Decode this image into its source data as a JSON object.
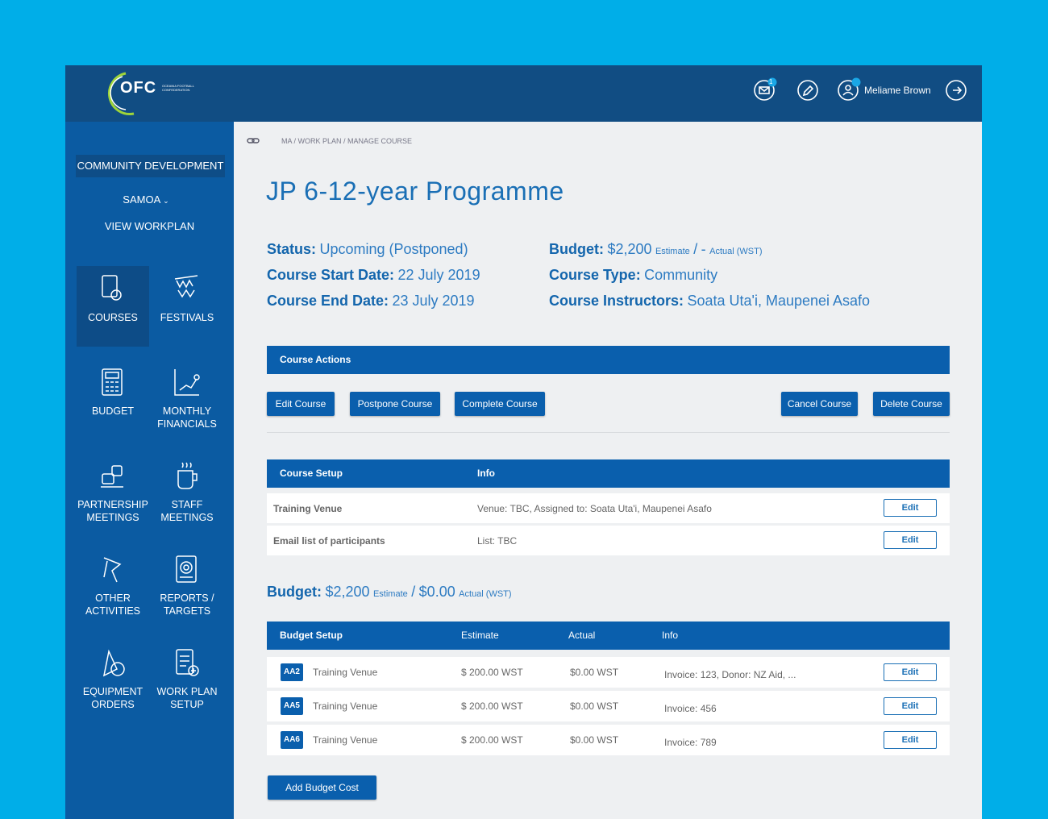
{
  "header": {
    "logo": "OFC",
    "logo_subtitle": "OCEANIA FOOTBALL CONFEDERATION",
    "notification_count": "1",
    "user_name": "Meliame Brown"
  },
  "sidebar": {
    "program": "COMMUNITY DEVELOPMENT",
    "country": "SAMOA",
    "view_workplan": "VIEW WORKPLAN",
    "menu": [
      {
        "lines": [
          "COURSES"
        ],
        "active": true
      },
      {
        "lines": [
          "FESTIVALS"
        ],
        "active": false
      },
      {
        "lines": [
          "BUDGET"
        ],
        "active": false
      },
      {
        "lines": [
          "MONTHLY",
          "FINANCIALS"
        ],
        "active": false
      },
      {
        "lines": [
          "PARTNERSHIP",
          "MEETINGS"
        ],
        "active": false
      },
      {
        "lines": [
          "STAFF",
          "MEETINGS"
        ],
        "active": false
      },
      {
        "lines": [
          "OTHER",
          "ACTIVITIES"
        ],
        "active": false
      },
      {
        "lines": [
          "REPORTS /",
          "TARGETS"
        ],
        "active": false
      },
      {
        "lines": [
          "EQUIPMENT",
          "ORDERS"
        ],
        "active": false
      },
      {
        "lines": [
          "WORK PLAN",
          "SETUP"
        ],
        "active": false
      }
    ]
  },
  "breadcrumb": "MA / WORK PLAN / MANAGE COURSE",
  "title": "JP 6-12-year Programme",
  "details": {
    "left": [
      {
        "label": "Status:",
        "value": "Upcoming (Postponed)"
      },
      {
        "label": "Course Start Date:",
        "value": "22 July 2019"
      },
      {
        "label": "Course End Date:",
        "value": "23 July 2019"
      }
    ],
    "budget": {
      "label": "Budget:",
      "estimate": "$2,200",
      "estimate_label": "Estimate",
      "separator": "/",
      "actual": "-",
      "actual_label": "Actual (WST)"
    },
    "right": [
      {
        "label": "Course Type:",
        "value": "Community"
      },
      {
        "label": "Course Instructors:",
        "value": "Soata Uta'i, Maupenei Asafo"
      }
    ]
  },
  "course_actions": {
    "title": "Course Actions",
    "left_buttons": [
      "Edit Course",
      "Postpone Course",
      "Complete Course"
    ],
    "right_buttons": [
      "Cancel Course",
      "Delete Course"
    ]
  },
  "course_setup": {
    "columns": [
      "Course Setup",
      "Info"
    ],
    "rows": [
      {
        "name": "Training Venue",
        "info": "Venue: TBC, Assigned to: Soata Uta'i, Maupenei Asafo"
      },
      {
        "name": "Email list of participants",
        "info": "List: TBC"
      }
    ],
    "edit_label": "Edit"
  },
  "budget_summary": {
    "label": "Budget:",
    "estimate": "$2,200",
    "estimate_label": "Estimate",
    "separator": "/",
    "actual": "$0.00",
    "actual_label": "Actual (WST)"
  },
  "budget_setup": {
    "columns": [
      "Budget Setup",
      "Estimate",
      "Actual",
      "Info"
    ],
    "rows": [
      {
        "code": "AA2",
        "item": "Training Venue",
        "estimate": "$ 200.00 WST",
        "actual": "$0.00 WST",
        "info": "Invoice: 123, Donor: NZ Aid, ..."
      },
      {
        "code": "AA5",
        "item": "Training Venue",
        "estimate": "$ 200.00 WST",
        "actual": "$0.00 WST",
        "info": "Invoice: 456"
      },
      {
        "code": "AA6",
        "item": "Training Venue",
        "estimate": "$ 200.00 WST",
        "actual": "$0.00 WST",
        "info": "Invoice: 789"
      }
    ],
    "edit_label": "Edit"
  },
  "add_button": "Add Budget Cost"
}
